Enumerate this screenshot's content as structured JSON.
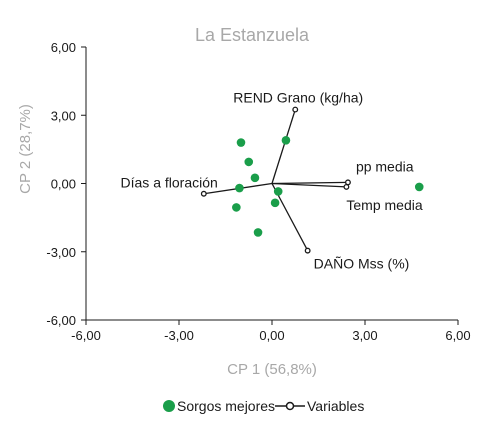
{
  "chart_data": {
    "type": "scatter",
    "title": "La Estanzuela",
    "xlabel": "CP 1 (56,8%)",
    "ylabel": "CP 2 (28,7%)",
    "xlim": [
      -6,
      6
    ],
    "ylim": [
      -6,
      6
    ],
    "x_ticks": [
      "-6,00",
      "-3,00",
      "0,00",
      "3,00",
      "6,00"
    ],
    "y_ticks": [
      "6,00",
      "3,00",
      "0,00",
      "-3,00",
      "-6,00"
    ],
    "grid": false,
    "legend_position": "bottom",
    "series": [
      {
        "name": "Sorgos mejores",
        "color": "#1a9e4a",
        "points": [
          {
            "x": 4.75,
            "y": -0.15
          },
          {
            "x": 0.45,
            "y": 1.9
          },
          {
            "x": -1.0,
            "y": 1.8
          },
          {
            "x": -0.75,
            "y": 0.95
          },
          {
            "x": -0.55,
            "y": 0.25
          },
          {
            "x": -1.05,
            "y": -0.2
          },
          {
            "x": -1.15,
            "y": -1.05
          },
          {
            "x": 0.2,
            "y": -0.35
          },
          {
            "x": 0.1,
            "y": -0.85
          },
          {
            "x": -0.45,
            "y": -2.15
          }
        ]
      },
      {
        "name": "Variables",
        "color": "#1a1a1a",
        "vectors": [
          {
            "label": "REND Grano (kg/ha)",
            "x": 0.75,
            "y": 3.25
          },
          {
            "label": "pp media",
            "x": 2.45,
            "y": 0.05
          },
          {
            "label": "Temp media",
            "x": 2.4,
            "y": -0.15
          },
          {
            "label": "Días a floración",
            "x": -2.2,
            "y": -0.45
          },
          {
            "label": "DAÑO Mss (%)",
            "x": 1.15,
            "y": -2.95
          }
        ]
      }
    ]
  }
}
